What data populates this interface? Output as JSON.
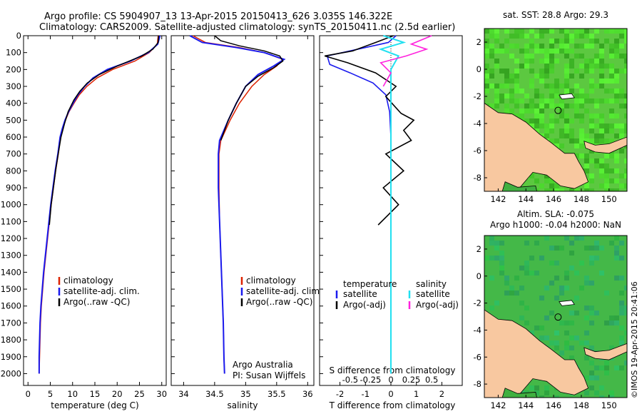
{
  "title_line1": "Argo profile: CS 5904907_13 13-Apr-2015 20150413_626 3.035S 146.322E",
  "title_line2": "Climatology: CARS2009. Satellite-adjusted climatology: synTS_20150411.nc (2.5d earlier)",
  "right_top_title": "sat. SST: 28.8 Argo: 29.3",
  "right_bottom_title1": "Altim. SLA: -0.075",
  "right_bottom_title2": "Argo h1000: -0.04 h2000: NaN",
  "credit": "©IMOS 19-Apr-2015 20:41:06",
  "colors": {
    "climatology": "#dd2200",
    "satellite": "#1a1aee",
    "argo": "#000000",
    "cyan": "#22e0f0",
    "magenta": "#ff22dd",
    "land": "#f8c8a0",
    "ocean": "#40b040"
  },
  "chart_data": [
    {
      "type": "line",
      "name": "temperature",
      "xlabel": "temperature (deg C)",
      "ylim": [
        0,
        2070
      ],
      "xlim": [
        -1,
        31
      ],
      "xticks": [
        "0",
        "5",
        "10",
        "15",
        "20",
        "25",
        "30"
      ],
      "yticks": [
        "0",
        "100",
        "200",
        "300",
        "400",
        "500",
        "600",
        "700",
        "800",
        "900",
        "1000",
        "1100",
        "1200",
        "1300",
        "1400",
        "1500",
        "1600",
        "1700",
        "1800",
        "1900",
        "2000"
      ],
      "legend": [
        "climatology",
        "satellite-adj. clim.",
        "Argo(..raw -QC)"
      ],
      "series": [
        {
          "name": "climatology",
          "points": [
            [
              29.2,
              0
            ],
            [
              29.0,
              50
            ],
            [
              27.2,
              100
            ],
            [
              24.0,
              150
            ],
            [
              19.0,
              200
            ],
            [
              15.5,
              250
            ],
            [
              13.2,
              300
            ],
            [
              11.5,
              350
            ],
            [
              10.3,
              400
            ],
            [
              9.2,
              450
            ],
            [
              8.4,
              500
            ],
            [
              7.8,
              550
            ],
            [
              7.3,
              600
            ],
            [
              6.8,
              700
            ],
            [
              6.2,
              800
            ],
            [
              5.7,
              900
            ],
            [
              5.2,
              1000
            ],
            [
              4.8,
              1100
            ],
            [
              4.4,
              1200
            ],
            [
              4.0,
              1300
            ],
            [
              3.6,
              1400
            ],
            [
              3.3,
              1500
            ],
            [
              3.0,
              1600
            ],
            [
              2.8,
              1700
            ],
            [
              2.7,
              1800
            ],
            [
              2.6,
              1900
            ],
            [
              2.5,
              2000
            ]
          ]
        },
        {
          "name": "satellite-adj. clim.",
          "points": [
            [
              29.6,
              0
            ],
            [
              29.1,
              50
            ],
            [
              27.0,
              100
            ],
            [
              23.0,
              150
            ],
            [
              17.8,
              200
            ],
            [
              14.6,
              250
            ],
            [
              12.7,
              300
            ],
            [
              11.2,
              350
            ],
            [
              10.1,
              400
            ],
            [
              9.1,
              450
            ],
            [
              8.3,
              500
            ],
            [
              7.7,
              550
            ],
            [
              7.2,
              600
            ],
            [
              6.7,
              700
            ],
            [
              6.1,
              800
            ],
            [
              5.6,
              900
            ],
            [
              5.1,
              1000
            ],
            [
              4.7,
              1100
            ],
            [
              4.3,
              1200
            ],
            [
              3.9,
              1300
            ],
            [
              3.5,
              1400
            ],
            [
              3.2,
              1500
            ],
            [
              2.9,
              1600
            ],
            [
              2.7,
              1700
            ],
            [
              2.6,
              1800
            ],
            [
              2.5,
              1900
            ],
            [
              2.5,
              2000
            ]
          ]
        },
        {
          "name": "Argo(..raw -QC)",
          "points": [
            [
              29.3,
              0
            ],
            [
              29.2,
              40
            ],
            [
              28.0,
              80
            ],
            [
              25.5,
              120
            ],
            [
              20.0,
              180
            ],
            [
              16.0,
              230
            ],
            [
              13.3,
              280
            ],
            [
              11.6,
              330
            ],
            [
              10.3,
              380
            ],
            [
              9.0,
              450
            ],
            [
              8.2,
              520
            ],
            [
              7.4,
              600
            ],
            [
              6.9,
              680
            ],
            [
              6.3,
              780
            ],
            [
              5.8,
              880
            ],
            [
              5.2,
              1000
            ],
            [
              4.8,
              1120
            ]
          ]
        }
      ]
    },
    {
      "type": "line",
      "name": "salinity",
      "xlabel": "salinity",
      "ylim": [
        0,
        2070
      ],
      "xlim": [
        33.8,
        36.1
      ],
      "xticks": [
        "34",
        "34.5",
        "35",
        "35.5",
        "36"
      ],
      "legend": [
        "climatology",
        "satellite-adj. clim.",
        "Argo(..raw -QC)"
      ],
      "annotation": [
        "Argo Australia",
        "PI: Susan Wijffels"
      ],
      "series": [
        {
          "name": "climatology",
          "points": [
            [
              34.15,
              0
            ],
            [
              34.35,
              40
            ],
            [
              34.9,
              70
            ],
            [
              35.3,
              100
            ],
            [
              35.6,
              140
            ],
            [
              35.5,
              180
            ],
            [
              35.3,
              230
            ],
            [
              35.1,
              300
            ],
            [
              34.9,
              400
            ],
            [
              34.75,
              500
            ],
            [
              34.6,
              620
            ],
            [
              34.57,
              700
            ],
            [
              34.57,
              900
            ],
            [
              34.58,
              1100
            ],
            [
              34.6,
              1300
            ],
            [
              34.62,
              1500
            ],
            [
              34.64,
              1700
            ],
            [
              34.65,
              1900
            ],
            [
              34.66,
              2000
            ]
          ]
        },
        {
          "name": "satellite-adj. clim.",
          "points": [
            [
              34.1,
              0
            ],
            [
              34.3,
              40
            ],
            [
              34.85,
              70
            ],
            [
              35.3,
              100
            ],
            [
              35.62,
              140
            ],
            [
              35.45,
              180
            ],
            [
              35.2,
              230
            ],
            [
              35.0,
              300
            ],
            [
              34.85,
              400
            ],
            [
              34.72,
              500
            ],
            [
              34.58,
              620
            ],
            [
              34.56,
              700
            ],
            [
              34.56,
              900
            ],
            [
              34.58,
              1100
            ],
            [
              34.6,
              1300
            ],
            [
              34.62,
              1500
            ],
            [
              34.64,
              1700
            ],
            [
              34.65,
              1900
            ],
            [
              34.66,
              2000
            ]
          ]
        },
        {
          "name": "Argo(..raw -QC)",
          "points": [
            [
              34.5,
              0
            ],
            [
              34.6,
              30
            ],
            [
              34.9,
              60
            ],
            [
              35.3,
              90
            ],
            [
              35.55,
              120
            ],
            [
              35.6,
              150
            ],
            [
              35.45,
              190
            ],
            [
              35.2,
              240
            ],
            [
              35.0,
              300
            ],
            [
              34.85,
              400
            ],
            [
              34.72,
              500
            ],
            [
              34.6,
              620
            ]
          ]
        }
      ]
    },
    {
      "type": "line",
      "name": "differences",
      "xlabel_top": "S difference from climatology",
      "xlabel": "T difference from climatology",
      "ylim": [
        0,
        2070
      ],
      "xlim": [
        -2.8,
        2.8
      ],
      "xticks_bottom": [
        "-2",
        "-1",
        "0",
        "1",
        "2"
      ],
      "xticks_top": [
        "-0.5",
        "-0.25",
        "0",
        "0.25",
        "0.5"
      ],
      "legend": [
        {
          "group": "temperature",
          "items": [
            "satellite",
            "Argo(-adj)"
          ]
        },
        {
          "group": "salinity",
          "items": [
            "satellite",
            "Argo(-adj)"
          ]
        }
      ],
      "series": [
        {
          "name": "temperature satellite",
          "points": [
            [
              0.2,
              0
            ],
            [
              -0.1,
              40
            ],
            [
              -1.3,
              80
            ],
            [
              -2.5,
              120
            ],
            [
              -2.4,
              170
            ],
            [
              -1.6,
              220
            ],
            [
              -0.7,
              280
            ],
            [
              -0.2,
              350
            ],
            [
              -0.05,
              450
            ],
            [
              0.0,
              600
            ],
            [
              0.0,
              2000
            ]
          ]
        },
        {
          "name": "temperature Argo(-adj)",
          "points": [
            [
              0.1,
              0
            ],
            [
              -0.6,
              40
            ],
            [
              -1.5,
              90
            ],
            [
              -2.6,
              120
            ],
            [
              -1.7,
              160
            ],
            [
              -0.6,
              220
            ],
            [
              0.2,
              300
            ],
            [
              -0.2,
              360
            ],
            [
              0.4,
              460
            ],
            [
              0.9,
              500
            ],
            [
              0.5,
              560
            ],
            [
              0.8,
              620
            ],
            [
              -0.2,
              700
            ],
            [
              0.5,
              800
            ],
            [
              -0.3,
              900
            ],
            [
              0.3,
              1000
            ],
            [
              -0.5,
              1120
            ]
          ]
        },
        {
          "name": "salinity satellite",
          "points": [
            [
              -0.3,
              0
            ],
            [
              0.5,
              40
            ],
            [
              -0.4,
              80
            ],
            [
              0.3,
              120
            ],
            [
              0.0,
              200
            ],
            [
              0.0,
              2000
            ]
          ]
        },
        {
          "name": "salinity Argo(-adj)",
          "points": [
            [
              1.6,
              0
            ],
            [
              0.8,
              50
            ],
            [
              1.4,
              80
            ],
            [
              0.6,
              120
            ],
            [
              -0.4,
              160
            ],
            [
              0.0,
              220
            ],
            [
              -0.3,
              300
            ]
          ]
        }
      ]
    },
    {
      "type": "heatmap",
      "name": "sst_map",
      "title": "sat. SST: 28.8 Argo: 29.3",
      "xticks": [
        "142",
        "144",
        "146",
        "148",
        "150"
      ],
      "yticks": [
        "2",
        "0",
        "-2",
        "-4",
        "-6",
        "-8"
      ],
      "xlim": [
        141,
        151.3
      ],
      "ylim": [
        -9,
        3
      ],
      "float_position": [
        146.322,
        -3.035
      ]
    },
    {
      "type": "heatmap",
      "name": "sla_map",
      "title": [
        "Altim. SLA: -0.075",
        "Argo h1000: -0.04 h2000: NaN"
      ],
      "xticks": [
        "142",
        "144",
        "146",
        "148",
        "150"
      ],
      "yticks": [
        "2",
        "0",
        "-2",
        "-4",
        "-6",
        "-8"
      ],
      "xlim": [
        141,
        151.3
      ],
      "ylim": [
        -9,
        3
      ],
      "float_position": [
        146.322,
        -3.035
      ]
    }
  ]
}
